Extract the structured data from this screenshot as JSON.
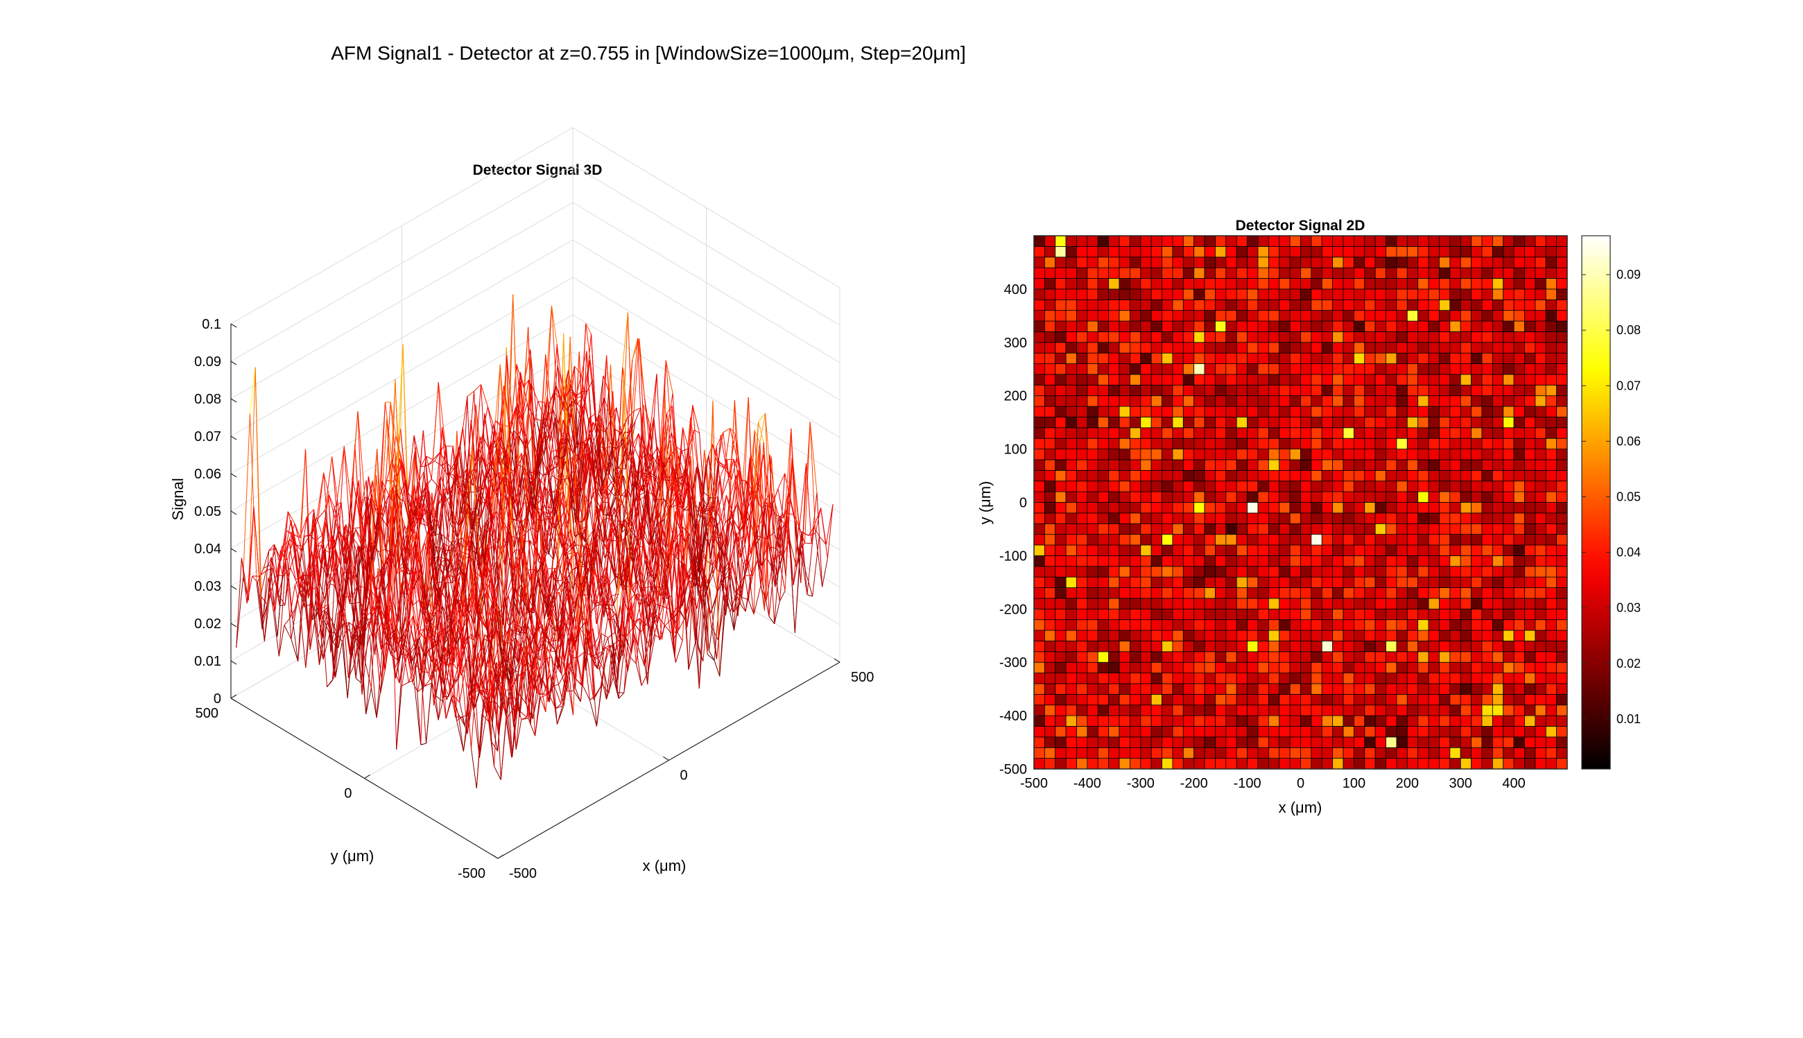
{
  "figure": {
    "suptitle": "AFM Signal1 - Detector at z=0.755 in [WindowSize=1000μm, Step=20μm]"
  },
  "chart_data": [
    {
      "type": "surface3d",
      "title": "Detector Signal 3D",
      "xlabel": "x (μm)",
      "ylabel": "y (μm)",
      "zlabel": "Signal",
      "xlim": [
        -500,
        500
      ],
      "ylim": [
        -500,
        500
      ],
      "zlim": [
        0,
        0.1
      ],
      "xticks": [
        "-500",
        "0",
        "500"
      ],
      "yticks": [
        "-500",
        "0",
        "500"
      ],
      "zticks": [
        "0",
        "0.01",
        "0.02",
        "0.03",
        "0.04",
        "0.05",
        "0.06",
        "0.07",
        "0.08",
        "0.09",
        "0.1"
      ],
      "grid": true,
      "colormap": "hot",
      "grid_step": 20,
      "value_range": [
        0.001,
        0.097
      ]
    },
    {
      "type": "heatmap",
      "title": "Detector Signal 2D",
      "xlabel": "x (μm)",
      "ylabel": "y (μm)",
      "xlim": [
        -500,
        480
      ],
      "ylim": [
        -500,
        480
      ],
      "xticks": [
        "-500",
        "-400",
        "-300",
        "-200",
        "-100",
        "0",
        "100",
        "200",
        "300",
        "400"
      ],
      "yticks": [
        "-500",
        "-400",
        "-300",
        "-200",
        "-100",
        "0",
        "100",
        "200",
        "300",
        "400"
      ],
      "colormap": "hot",
      "colorbar": {
        "range": [
          0.001,
          0.097
        ],
        "ticks": [
          "0.01",
          "0.02",
          "0.03",
          "0.04",
          "0.05",
          "0.06",
          "0.07",
          "0.08",
          "0.09"
        ]
      },
      "grid_step": 20,
      "value_range": [
        0.001,
        0.097
      ],
      "highlights": [
        {
          "x": -100,
          "y": -20,
          "value": 0.095
        },
        {
          "x": 20,
          "y": -80,
          "value": 0.095
        },
        {
          "x": 40,
          "y": -280,
          "value": 0.093
        },
        {
          "x": -200,
          "y": 240,
          "value": 0.09
        },
        {
          "x": -460,
          "y": 460,
          "value": 0.088
        }
      ]
    }
  ],
  "colors": {
    "background": "#ffffff",
    "axis": "#262626",
    "grid": "#dcdcdc",
    "cell_edge": "#000000"
  }
}
